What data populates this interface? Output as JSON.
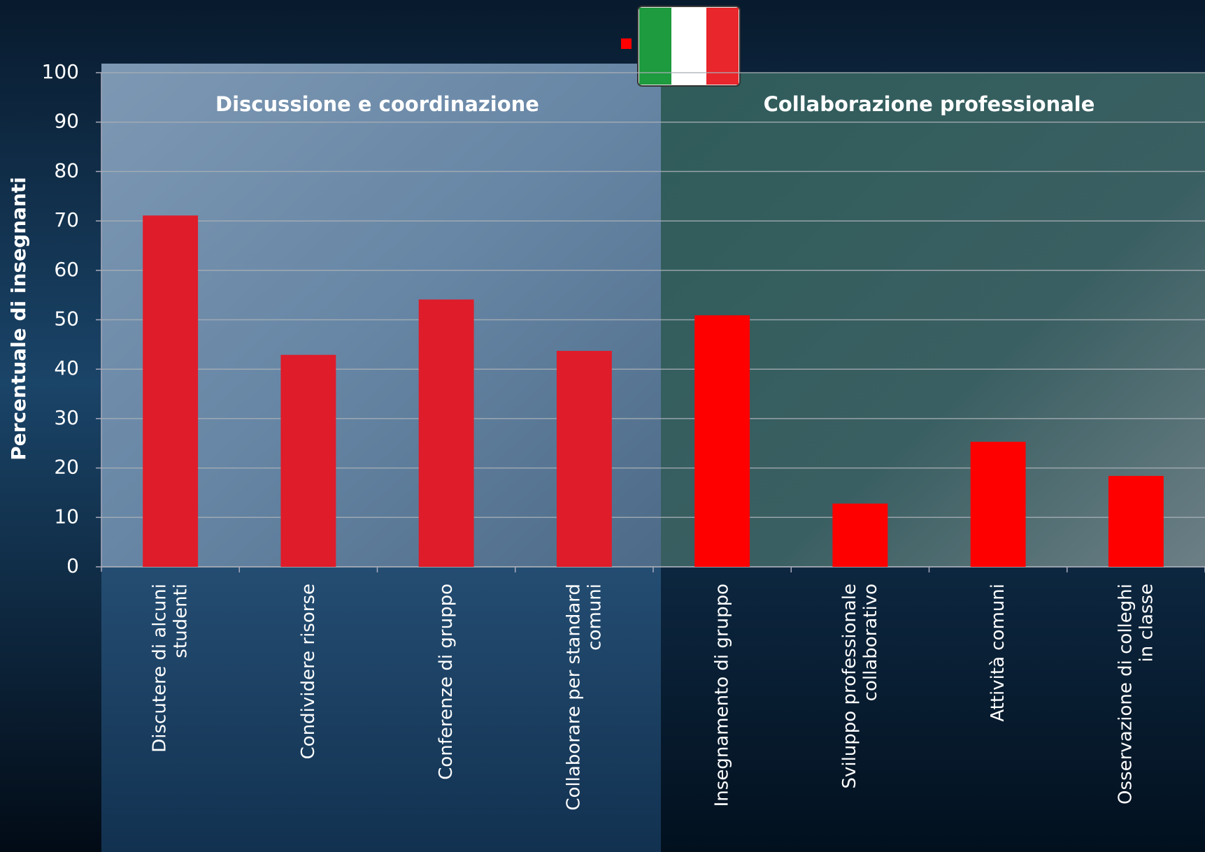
{
  "chart_data": {
    "type": "bar",
    "y_label": "Percentuale di insegnanti",
    "ylim": [
      0,
      100
    ],
    "yticks": [
      0,
      10,
      20,
      30,
      40,
      50,
      60,
      70,
      80,
      90,
      100
    ],
    "grid": true,
    "groups": [
      {
        "title": "Discussione e coordinazione",
        "color": "#df1c2a",
        "categories": [
          "Discutere di alcuni\nstudenti",
          "Condividere risorse",
          "Conferenze di gruppo",
          "Collaborare per standard\ncomuni"
        ],
        "values": [
          71.1,
          42.9,
          54.1,
          43.7
        ]
      },
      {
        "title": "Collaborazione professionale",
        "color": "#ff0000",
        "categories": [
          "Insegnamento di gruppo",
          "Sviluppo professionale\ncollaborativo",
          "Attività comuni",
          "Osservazione di colleghi\nin classe"
        ],
        "values": [
          50.9,
          12.8,
          25.3,
          18.4
        ]
      }
    ]
  }
}
